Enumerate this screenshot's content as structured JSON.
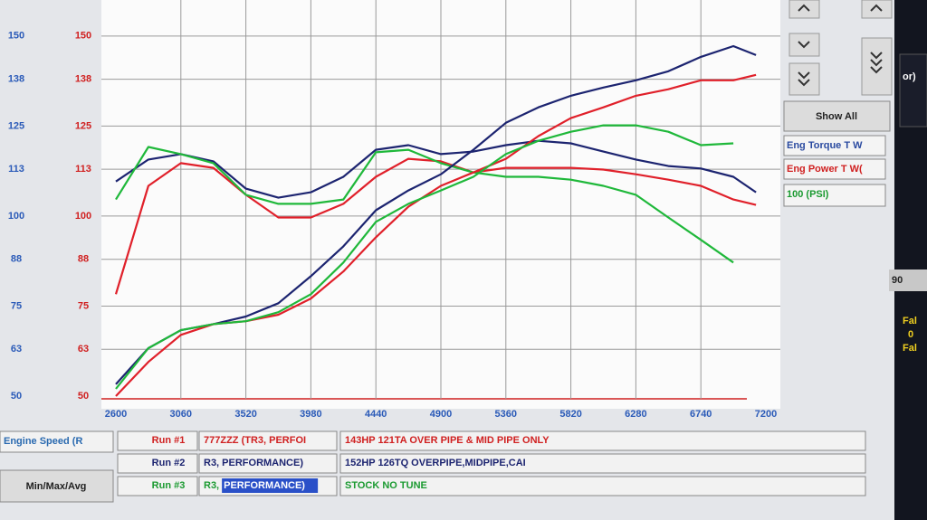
{
  "chart_data": {
    "type": "line",
    "x": [
      2600,
      2830,
      3060,
      3290,
      3520,
      3750,
      3980,
      4210,
      4440,
      4670,
      4900,
      5130,
      5360,
      5590,
      5820,
      6050,
      6280,
      6510,
      6740,
      6970,
      7130
    ],
    "xlim": [
      2600,
      7200
    ],
    "xticks": [
      2600,
      3060,
      3520,
      3980,
      4440,
      4900,
      5360,
      5820,
      6280,
      6740,
      7200
    ],
    "ylim": [
      50,
      160
    ],
    "yticks": [
      50,
      63,
      75,
      88,
      100,
      113,
      125,
      138,
      150
    ],
    "y2lim": [
      50,
      160
    ],
    "y2ticks": [
      50,
      63,
      75,
      88,
      100,
      113,
      125,
      138,
      150
    ],
    "grid": true,
    "series": [
      {
        "color": "#1c2470",
        "values": [
          109.6,
          115.7,
          117.2,
          115.2,
          107.6,
          105.1,
          106.6,
          110.9,
          118.4,
          119.7,
          117.2,
          117.9,
          119.7,
          120.9,
          120.2,
          117.9,
          115.7,
          113.9,
          113.2,
          110.9,
          106.6
        ]
      },
      {
        "color": "#e0202a",
        "values": [
          78.3,
          108.4,
          114.7,
          113.4,
          105.9,
          99.6,
          99.6,
          103.4,
          110.9,
          115.9,
          115.2,
          112.1,
          113.4,
          113.4,
          113.4,
          112.9,
          111.6,
          110.1,
          108.4,
          104.6,
          103.1
        ]
      },
      {
        "color": "#1fb83a",
        "values": [
          104.6,
          119.2,
          117.2,
          114.7,
          105.9,
          103.4,
          103.4,
          104.6,
          117.7,
          118.4,
          114.7,
          112.1,
          110.9,
          110.9,
          110.1,
          108.4,
          105.9,
          99.6,
          93.4,
          87.1,
          null
        ]
      },
      {
        "color": "#1c2470",
        "values": [
          53.3,
          63.3,
          68.3,
          70.0,
          72.1,
          75.8,
          83.3,
          91.6,
          101.6,
          107.1,
          111.6,
          118.4,
          125.9,
          130.2,
          133.4,
          135.7,
          137.7,
          140.2,
          144.2,
          147.2,
          144.7
        ]
      },
      {
        "color": "#e0202a",
        "values": [
          50,
          59.5,
          67,
          70,
          70.8,
          72.6,
          77.1,
          84.6,
          94.1,
          102.6,
          108.4,
          112.1,
          115.9,
          122.2,
          127.2,
          130.2,
          133.4,
          135.2,
          137.7,
          137.7,
          139.2
        ]
      },
      {
        "color": "#1fb83a",
        "values": [
          52,
          63.3,
          68.3,
          70,
          70.8,
          73.3,
          78.3,
          87.1,
          98.4,
          103.4,
          107.1,
          110.9,
          117.2,
          120.9,
          123.4,
          125.2,
          125.2,
          123.4,
          119.7,
          120.2,
          null
        ]
      }
    ]
  },
  "panel": {
    "show_all": "Show All",
    "min_max_avg": "Min/Max/Avg",
    "engine_speed": "Engine Speed (R",
    "legend": [
      "Eng Torque T W",
      "Eng Power T W(",
      "100 (PSI)"
    ],
    "runs": [
      {
        "label": "Run #1",
        "name": "777ZZZ (TR3, PERFOI",
        "desc": "143HP 121TA OVER PIPE & MID PIPE ONLY"
      },
      {
        "label": "Run #2",
        "name": "R3, PERFORMANCE)",
        "desc": "152HP 126TQ OVERPIPE,MIDPIPE,CAI"
      },
      {
        "label": "Run #3",
        "name": "R3,",
        "name_selected": "PERFORMANCE)",
        "desc": "STOCK NO TUNE"
      }
    ],
    "side": [
      "or)",
      "90",
      "Fal",
      "0",
      "Fal"
    ]
  }
}
